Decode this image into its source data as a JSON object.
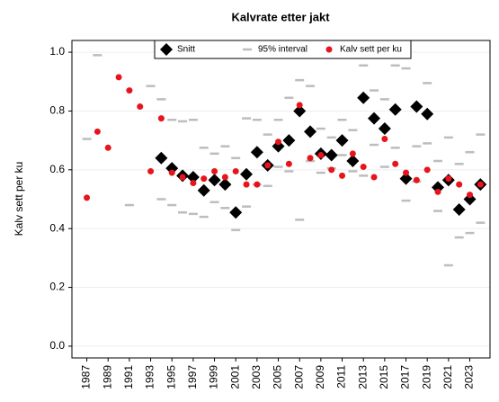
{
  "chart_data": {
    "type": "scatter",
    "title": "Kalvrate etter jakt",
    "y_label": "Kalv sett per ku",
    "x": [
      1987,
      1988,
      1989,
      1990,
      1991,
      1992,
      1993,
      1994,
      1995,
      1996,
      1997,
      1998,
      1999,
      2000,
      2001,
      2002,
      2003,
      2004,
      2005,
      2006,
      2007,
      2008,
      2009,
      2010,
      2011,
      2012,
      2013,
      2014,
      2015,
      2016,
      2017,
      2018,
      2019,
      2020,
      2021,
      2022,
      2023,
      2024
    ],
    "series": [
      {
        "name": "Snitt",
        "color": "#000000",
        "marker": "diamond",
        "values": [
          null,
          null,
          null,
          null,
          null,
          null,
          null,
          0.64,
          0.605,
          0.58,
          0.575,
          0.53,
          0.565,
          0.55,
          0.455,
          0.585,
          0.66,
          0.615,
          0.68,
          0.7,
          0.8,
          0.73,
          0.655,
          0.65,
          0.7,
          0.63,
          0.845,
          0.775,
          0.74,
          0.805,
          0.57,
          0.815,
          0.79,
          0.54,
          0.565,
          0.465,
          0.5,
          0.55
        ]
      },
      {
        "name": "95% interval",
        "color": "#bdbdbd",
        "marker": "dash",
        "low": [
          null,
          null,
          null,
          null,
          0.48,
          null,
          null,
          0.5,
          0.48,
          0.455,
          0.45,
          0.44,
          0.49,
          0.47,
          0.395,
          0.475,
          0.55,
          0.545,
          0.61,
          0.595,
          0.43,
          0.63,
          0.59,
          0.605,
          0.65,
          0.595,
          0.58,
          0.685,
          0.61,
          0.675,
          0.495,
          0.56,
          0.69,
          0.46,
          0.275,
          0.37,
          0.385,
          0.42
        ],
        "high": [
          0.705,
          0.99,
          null,
          null,
          null,
          null,
          0.885,
          0.84,
          0.77,
          0.765,
          0.77,
          0.675,
          0.655,
          0.68,
          0.64,
          0.775,
          0.77,
          0.72,
          0.77,
          0.845,
          0.905,
          0.885,
          0.74,
          0.71,
          0.77,
          0.735,
          0.955,
          0.87,
          0.84,
          0.955,
          0.945,
          0.68,
          0.895,
          0.63,
          0.71,
          0.62,
          0.66,
          0.72
        ]
      },
      {
        "name": "Kalv sett per ku",
        "color": "#e8141b",
        "marker": "dot",
        "values": [
          0.505,
          0.73,
          0.675,
          0.915,
          0.87,
          0.815,
          0.595,
          0.775,
          0.59,
          0.575,
          0.555,
          0.57,
          0.595,
          0.575,
          0.595,
          0.55,
          0.55,
          0.615,
          0.695,
          0.62,
          0.82,
          0.64,
          0.65,
          0.6,
          0.58,
          0.655,
          0.61,
          0.575,
          0.705,
          0.62,
          0.59,
          0.565,
          0.6,
          0.525,
          0.57,
          0.55,
          0.515,
          0.55
        ]
      }
    ],
    "xlim": [
      1985.6,
      2024.9
    ],
    "xticks": [
      1987,
      1989,
      1991,
      1993,
      1995,
      1997,
      1999,
      2001,
      2003,
      2005,
      2007,
      2009,
      2011,
      2013,
      2015,
      2017,
      2019,
      2021,
      2023
    ],
    "ylim": [
      -0.04,
      1.04
    ],
    "yticks": [
      {
        "value": 0,
        "label": "0.0"
      },
      0.2,
      0.4,
      0.6,
      0.8,
      {
        "value": 1,
        "label": "1.0"
      }
    ],
    "grid": true,
    "legend": "top"
  }
}
